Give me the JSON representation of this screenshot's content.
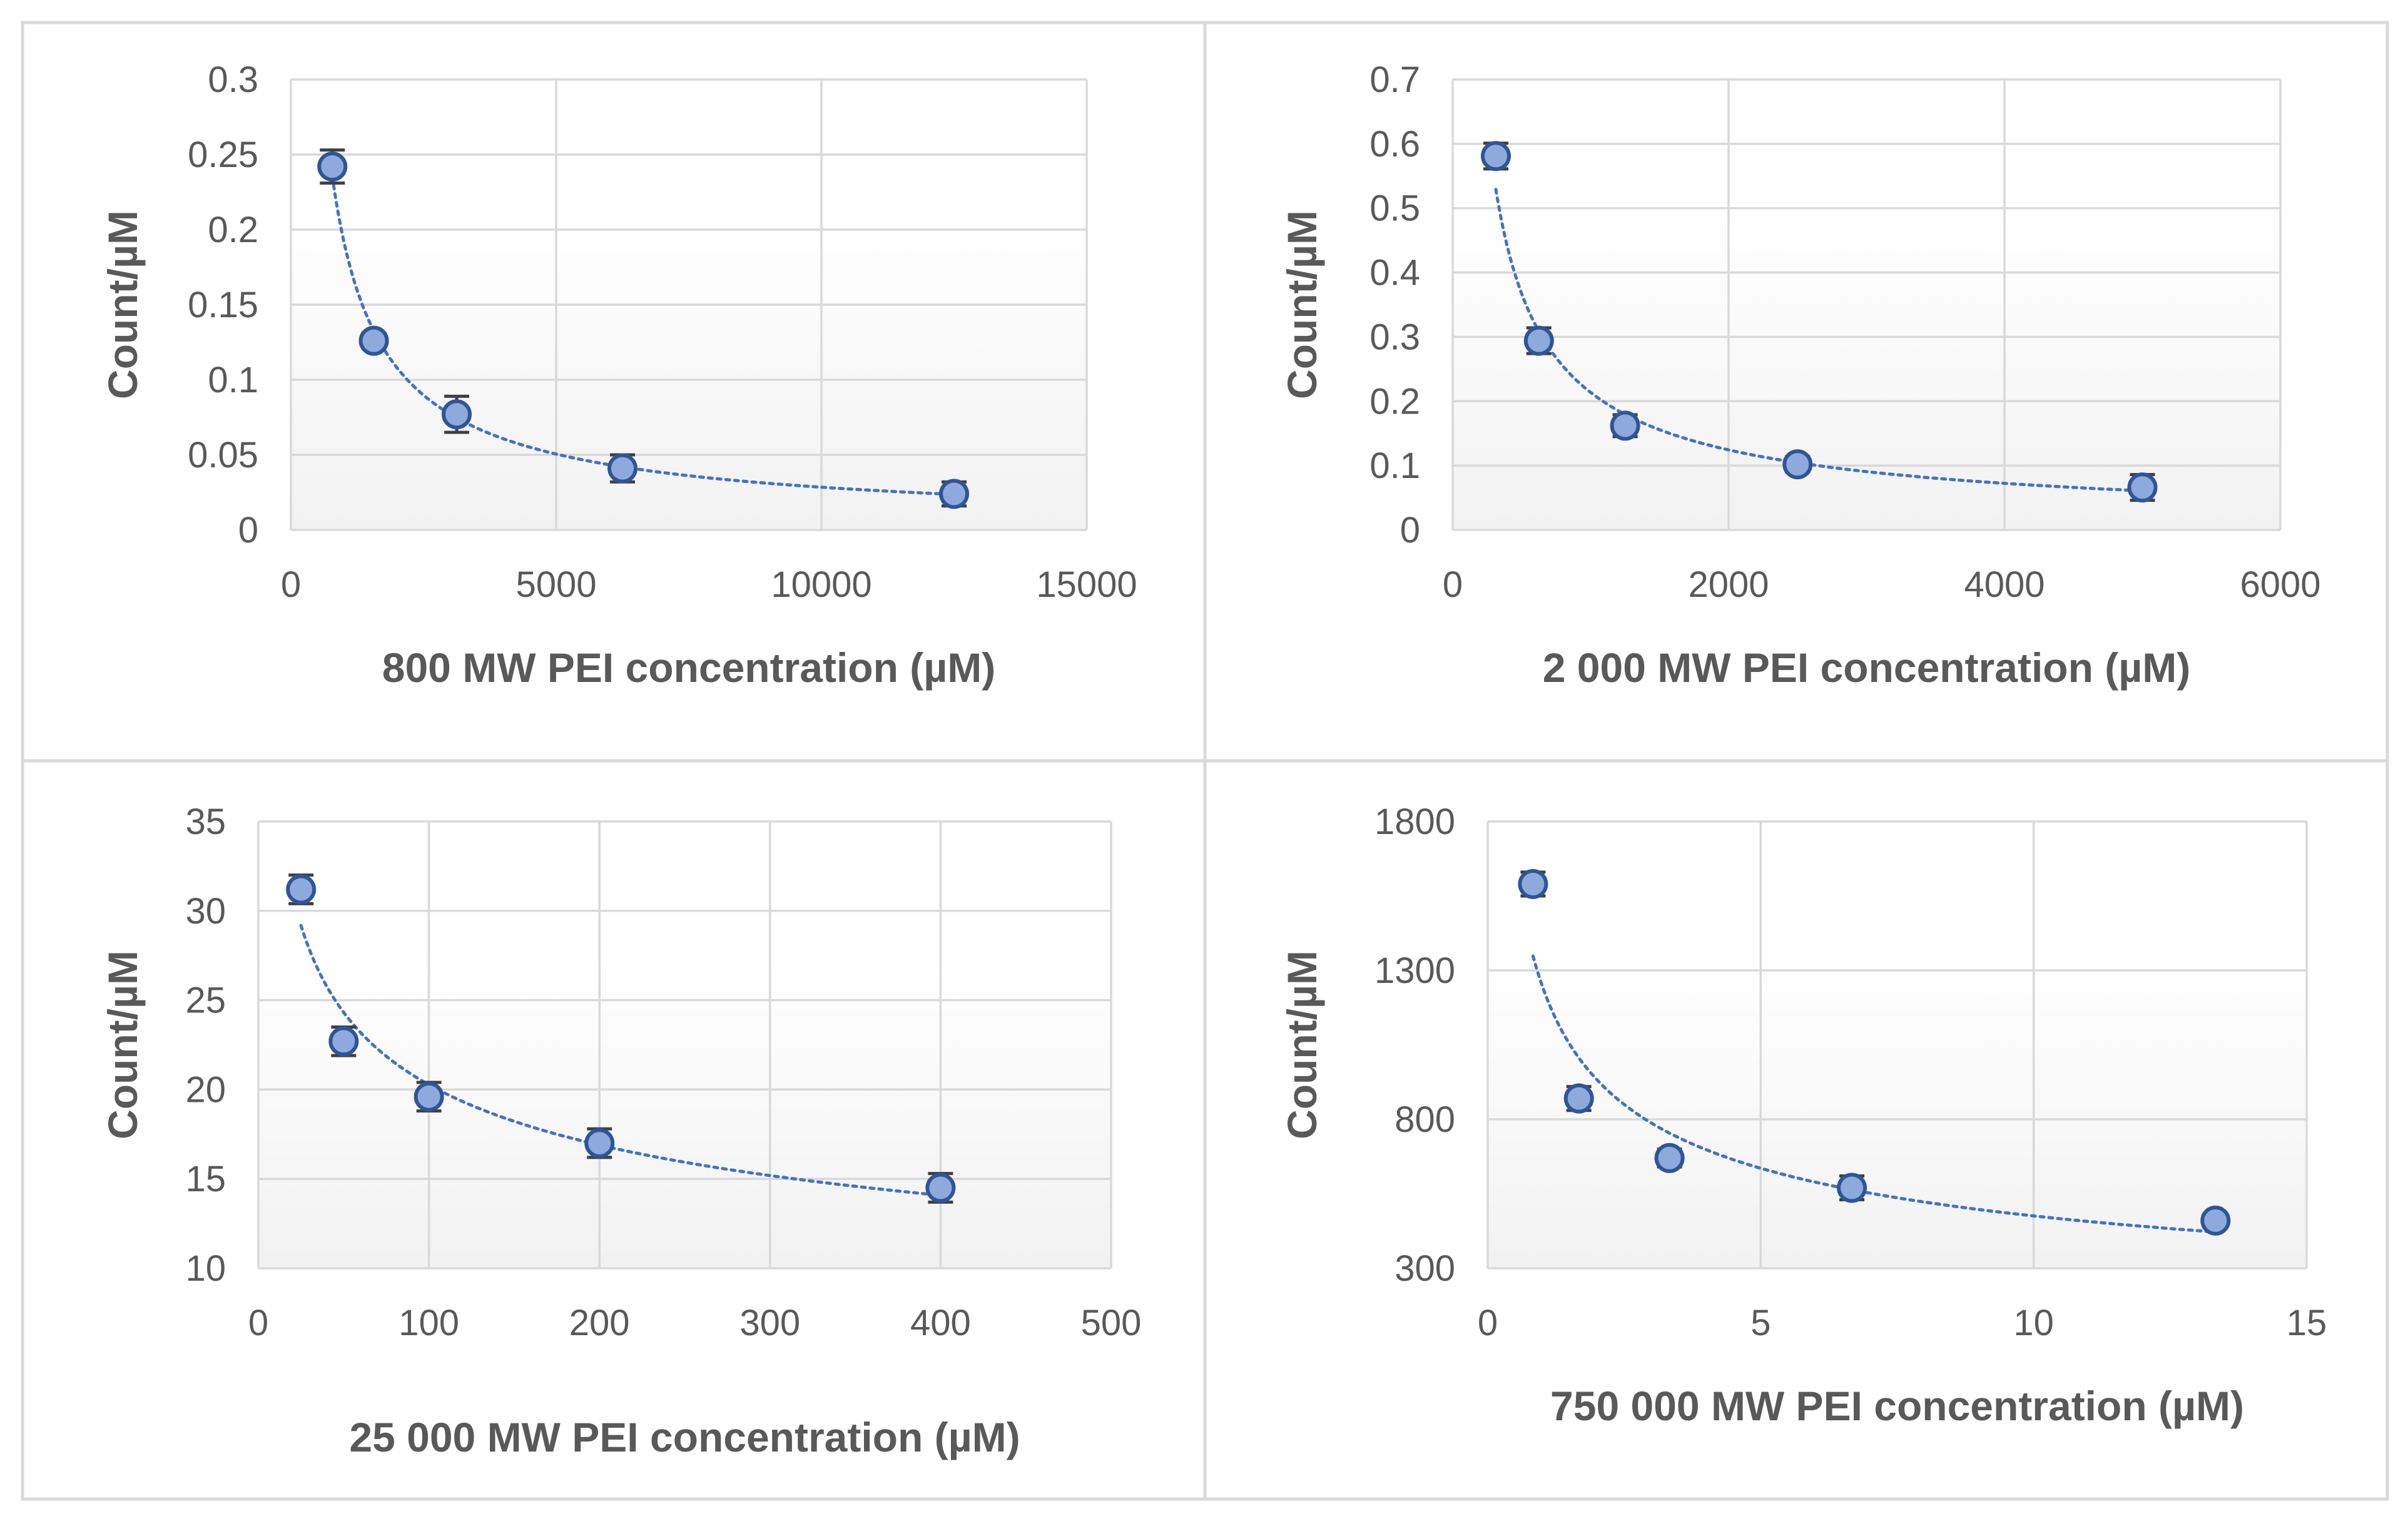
{
  "chart_data": [
    {
      "type": "scatter",
      "title": "",
      "xlabel": "800 MW PEI concentration (µM)",
      "ylabel": "Count/µM",
      "xlim": [
        0,
        15000
      ],
      "ylim": [
        0,
        0.3
      ],
      "xticks": [
        0,
        5000,
        10000,
        15000
      ],
      "xtick_labels": [
        "0",
        "5000",
        "10000",
        "15000"
      ],
      "yticks": [
        0,
        0.05,
        0.1,
        0.15,
        0.2,
        0.25,
        0.3
      ],
      "ytick_labels": [
        "0",
        "0.05",
        "0.1",
        "0.15",
        "0.2",
        "0.25",
        "0.3"
      ],
      "grid": true,
      "trendline": "power",
      "series": [
        {
          "name": "800 MW PEI",
          "x": [
            781,
            1563,
            3125,
            6250,
            12500
          ],
          "y": [
            0.242,
            0.126,
            0.077,
            0.041,
            0.024
          ],
          "err": [
            0.011,
            0.005,
            0.012,
            0.009,
            0.008
          ]
        }
      ]
    },
    {
      "type": "scatter",
      "title": "",
      "xlabel": "2 000 MW PEI concentration (µM)",
      "ylabel": "Count/µM",
      "xlim": [
        0,
        6000
      ],
      "ylim": [
        0,
        0.7
      ],
      "xticks": [
        0,
        2000,
        4000,
        6000
      ],
      "xtick_labels": [
        "0",
        "2000",
        "4000",
        "6000"
      ],
      "yticks": [
        0,
        0.1,
        0.2,
        0.3,
        0.4,
        0.5,
        0.6,
        0.7
      ],
      "ytick_labels": [
        "0",
        "0.1",
        "0.2",
        "0.3",
        "0.4",
        "0.5",
        "0.6",
        "0.7"
      ],
      "grid": true,
      "trendline": "power",
      "series": [
        {
          "name": "2 000 MW PEI",
          "x": [
            313,
            625,
            1250,
            2500,
            5000
          ],
          "y": [
            0.581,
            0.294,
            0.162,
            0.102,
            0.066
          ],
          "err": [
            0.02,
            0.02,
            0.017,
            0.012,
            0.02
          ]
        }
      ]
    },
    {
      "type": "scatter",
      "title": "",
      "xlabel": "25 000 MW PEI concentration (µM)",
      "ylabel": "Count/µM",
      "xlim": [
        0,
        500
      ],
      "ylim": [
        10,
        35
      ],
      "xticks": [
        0,
        100,
        200,
        300,
        400,
        500
      ],
      "xtick_labels": [
        "0",
        "100",
        "200",
        "300",
        "400",
        "500"
      ],
      "yticks": [
        10,
        15,
        20,
        25,
        30,
        35
      ],
      "ytick_labels": [
        "10",
        "15",
        "20",
        "25",
        "30",
        "35"
      ],
      "grid": true,
      "trendline": "power",
      "series": [
        {
          "name": "25 000 MW PEI",
          "x": [
            25,
            50,
            100,
            200,
            400
          ],
          "y": [
            31.2,
            22.7,
            19.6,
            17.0,
            14.5
          ],
          "err": [
            0.8,
            0.8,
            0.8,
            0.8,
            0.8
          ]
        }
      ]
    },
    {
      "type": "scatter",
      "title": "",
      "xlabel": "750 000 MW PEI concentration (µM)",
      "ylabel": "Count/µM",
      "xlim": [
        0,
        15
      ],
      "ylim": [
        300,
        1800
      ],
      "xticks": [
        0,
        5,
        10,
        15
      ],
      "xtick_labels": [
        "0",
        "5",
        "10",
        "15"
      ],
      "yticks": [
        300,
        800,
        1300,
        1800
      ],
      "ytick_labels": [
        "300",
        "800",
        "1300",
        "1800"
      ],
      "grid": true,
      "trendline": "power",
      "series": [
        {
          "name": "750 000 MW PEI",
          "x": [
            0.83,
            1.67,
            3.33,
            6.67,
            13.33
          ],
          "y": [
            1590,
            870,
            670,
            570,
            460
          ],
          "err": [
            40,
            40,
            30,
            40,
            20
          ]
        }
      ]
    }
  ]
}
